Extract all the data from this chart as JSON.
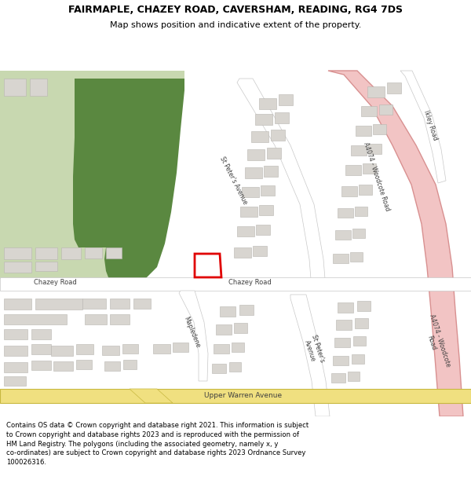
{
  "title": "FAIRMAPLE, CHAZEY ROAD, CAVERSHAM, READING, RG4 7DS",
  "subtitle": "Map shows position and indicative extent of the property.",
  "footer": "Contains OS data © Crown copyright and database right 2021. This information is subject to Crown copyright and database rights 2023 and is reproduced with the permission of HM Land Registry. The polygons (including the associated geometry, namely x, y co-ordinates) are subject to Crown copyright and database rights 2023 Ordnance Survey 100026316.",
  "map_bg": "#f2f0ed",
  "road_white": "#ffffff",
  "road_outline": "#c8c8c8",
  "major_road_color": "#f2c4c4",
  "major_road_outline": "#d89090",
  "yellow_road_color": "#f0e080",
  "yellow_road_outline": "#c8b840",
  "building_color": "#d8d5d0",
  "building_outline": "#b8b5b0",
  "green_light": "#c8d8b0",
  "green_dark": "#5a8840",
  "plot_outline": "#e00000",
  "plot_fill": "#ffffff"
}
